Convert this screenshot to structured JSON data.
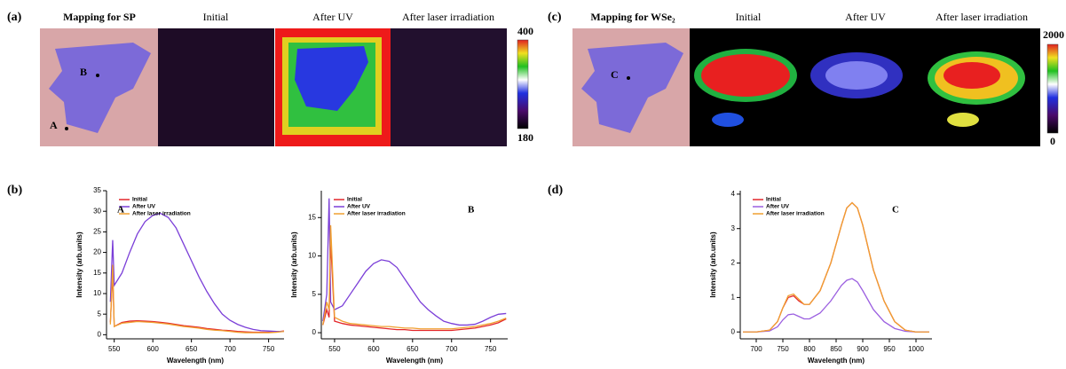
{
  "figure": {
    "labels": [
      "(a)",
      "(b)",
      "(c)",
      "(d)"
    ],
    "mapping_sp": {
      "titles": [
        "Mapping for SP",
        "Initial",
        "After UV",
        "After laser irradiation"
      ],
      "points": [
        "B",
        "A"
      ],
      "colorbar": [
        400,
        180
      ]
    },
    "mapping_wse2": {
      "titles": [
        "Mapping for WSe₂",
        "Initial",
        "After UV",
        "After laser irradiation"
      ],
      "points": [
        "C"
      ],
      "colorbar": [
        2000,
        0
      ]
    }
  },
  "chart_data": [
    {
      "type": "line",
      "annotation": "A",
      "xlabel": "Wavelength (nm)",
      "ylabel": "Intensity (arb.units)",
      "legend": "upper left",
      "x": [
        545,
        548,
        550,
        560,
        570,
        580,
        590,
        600,
        610,
        620,
        630,
        640,
        650,
        660,
        670,
        680,
        690,
        700,
        710,
        720,
        730,
        740,
        750,
        760,
        770
      ],
      "xlim": [
        540,
        770
      ],
      "xticks": [
        550,
        600,
        650,
        700,
        750
      ],
      "ylim": [
        -1,
        35
      ],
      "yticks": [
        0,
        5,
        10,
        15,
        20,
        25,
        30,
        35
      ],
      "series": [
        {
          "name": "Initial",
          "color": "#e3262a",
          "values": [
            3,
            15,
            2,
            3,
            3.3,
            3.4,
            3.3,
            3.2,
            3,
            2.8,
            2.5,
            2.2,
            2,
            1.8,
            1.5,
            1.3,
            1.1,
            1,
            0.8,
            0.7,
            0.6,
            0.6,
            0.6,
            0.7,
            0.9
          ]
        },
        {
          "name": "After UV",
          "color": "#7b3fd8",
          "values": [
            8,
            23,
            12,
            15,
            20,
            24.5,
            27.5,
            29,
            29.5,
            28.5,
            26,
            22,
            18,
            14,
            10.5,
            7.5,
            5,
            3.5,
            2.5,
            1.8,
            1.3,
            1,
            0.9,
            0.8,
            0.8
          ]
        },
        {
          "name": "After laser irradiation",
          "color": "#f0a030",
          "values": [
            2.5,
            17,
            2,
            2.8,
            3,
            3.2,
            3.1,
            3,
            2.8,
            2.6,
            2.3,
            2,
            1.8,
            1.6,
            1.3,
            1.1,
            1,
            0.8,
            0.6,
            0.5,
            0.5,
            0.5,
            0.5,
            0.6,
            0.8
          ]
        }
      ]
    },
    {
      "type": "line",
      "annotation": "B",
      "xlabel": "Wavelength (nm)",
      "ylabel": "Intensity (arb.units)",
      "legend": "upper left",
      "x": [
        535,
        540,
        543,
        545,
        550,
        560,
        570,
        580,
        590,
        600,
        610,
        620,
        630,
        640,
        650,
        660,
        670,
        680,
        690,
        700,
        710,
        720,
        730,
        740,
        750,
        760,
        770
      ],
      "xlim": [
        533,
        772
      ],
      "xticks": [
        550,
        600,
        650,
        700,
        750
      ],
      "ylim": [
        -0.8,
        18.5
      ],
      "yticks": [
        0,
        5,
        10,
        15
      ],
      "series": [
        {
          "name": "Initial",
          "color": "#e3262a",
          "values": [
            1,
            3,
            2,
            12,
            1.5,
            1.2,
            1,
            0.9,
            0.8,
            0.7,
            0.6,
            0.5,
            0.4,
            0.4,
            0.3,
            0.3,
            0.3,
            0.3,
            0.3,
            0.3,
            0.4,
            0.5,
            0.6,
            0.8,
            1,
            1.3,
            1.8
          ]
        },
        {
          "name": "After UV",
          "color": "#7b3fd8",
          "values": [
            1.5,
            5,
            17.5,
            4,
            3,
            3.5,
            5,
            6.5,
            8,
            9,
            9.5,
            9.3,
            8.5,
            7,
            5.5,
            4,
            3,
            2.2,
            1.5,
            1.2,
            1,
            1,
            1.1,
            1.5,
            2,
            2.4,
            2.5
          ]
        },
        {
          "name": "After laser irradiation",
          "color": "#f0a030",
          "values": [
            1,
            4,
            3,
            14,
            2,
            1.5,
            1.2,
            1.1,
            1,
            0.9,
            0.8,
            0.8,
            0.7,
            0.6,
            0.6,
            0.5,
            0.5,
            0.5,
            0.5,
            0.5,
            0.6,
            0.7,
            0.8,
            1,
            1.2,
            1.5,
            1.9
          ]
        }
      ]
    },
    {
      "type": "line",
      "annotation": "C",
      "xlabel": "Wavelength (nm)",
      "ylabel": "Intensity (arb.units)",
      "legend": "upper left",
      "x": [
        675,
        700,
        725,
        740,
        750,
        760,
        770,
        780,
        790,
        800,
        820,
        840,
        860,
        870,
        880,
        890,
        900,
        920,
        940,
        950,
        960,
        980,
        1000,
        1025
      ],
      "xlim": [
        670,
        1030
      ],
      "xticks": [
        700,
        750,
        800,
        850,
        900,
        950,
        1000
      ],
      "ylim": [
        -0.2,
        4.1
      ],
      "yticks": [
        0,
        1,
        2,
        3,
        4
      ],
      "series": [
        {
          "name": "Initial",
          "color": "#e3262a",
          "values": [
            0,
            0,
            0.05,
            0.3,
            0.7,
            1,
            1.05,
            0.9,
            0.8,
            0.8,
            1.2,
            2,
            3.1,
            3.6,
            3.75,
            3.6,
            3.1,
            1.8,
            0.9,
            0.6,
            0.3,
            0.05,
            0,
            0
          ]
        },
        {
          "name": "After UV",
          "color": "#9b5fe0",
          "values": [
            0,
            0,
            0.03,
            0.15,
            0.35,
            0.5,
            0.52,
            0.45,
            0.38,
            0.38,
            0.55,
            0.9,
            1.35,
            1.5,
            1.55,
            1.45,
            1.2,
            0.65,
            0.3,
            0.2,
            0.1,
            0.02,
            0,
            0
          ]
        },
        {
          "name": "After laser irradiation",
          "color": "#f0a030",
          "values": [
            0,
            0,
            0.05,
            0.3,
            0.7,
            1.05,
            1.1,
            0.95,
            0.8,
            0.8,
            1.2,
            2,
            3.1,
            3.6,
            3.75,
            3.6,
            3.1,
            1.8,
            0.9,
            0.6,
            0.3,
            0.05,
            0,
            0
          ]
        }
      ]
    }
  ]
}
